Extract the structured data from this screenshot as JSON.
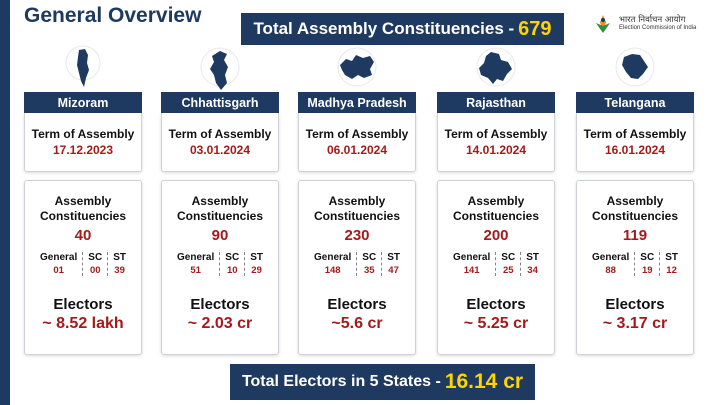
{
  "header": {
    "title": "General Overview",
    "total_ac_label": "Total Assembly Constituencies -",
    "total_ac_value": "679",
    "logo_hindi": "भारत निर्वाचन आयोग",
    "logo_english": "Election Commission of India"
  },
  "labels": {
    "term": "Term of Assembly",
    "ac": "Assembly Constituencies",
    "general": "General",
    "sc": "SC",
    "st": "ST",
    "electors": "Electors"
  },
  "states": [
    {
      "name": "Mizoram",
      "term_date": "17.12.2023",
      "ac": "40",
      "general": "01",
      "sc": "00",
      "st": "39",
      "electors": "~ 8.52 lakh"
    },
    {
      "name": "Chhattisgarh",
      "term_date": "03.01.2024",
      "ac": "90",
      "general": "51",
      "sc": "10",
      "st": "29",
      "electors": "~ 2.03 cr"
    },
    {
      "name": "Madhya Pradesh",
      "term_date": "06.01.2024",
      "ac": "230",
      "general": "148",
      "sc": "35",
      "st": "47",
      "electors": "~5.6 cr"
    },
    {
      "name": "Rajasthan",
      "term_date": "14.01.2024",
      "ac": "200",
      "general": "141",
      "sc": "25",
      "st": "34",
      "electors": "~ 5.25 cr"
    },
    {
      "name": "Telangana",
      "term_date": "16.01.2024",
      "ac": "119",
      "general": "88",
      "sc": "19",
      "st": "12",
      "electors": "~ 3.17 cr"
    }
  ],
  "footer": {
    "total_electors_label": "Total Electors in 5 States -",
    "total_electors_value": "16.14 cr"
  },
  "colors": {
    "navy": "#1f3a60",
    "highlight": "#ffd400",
    "value_red": "#a41a1a"
  }
}
